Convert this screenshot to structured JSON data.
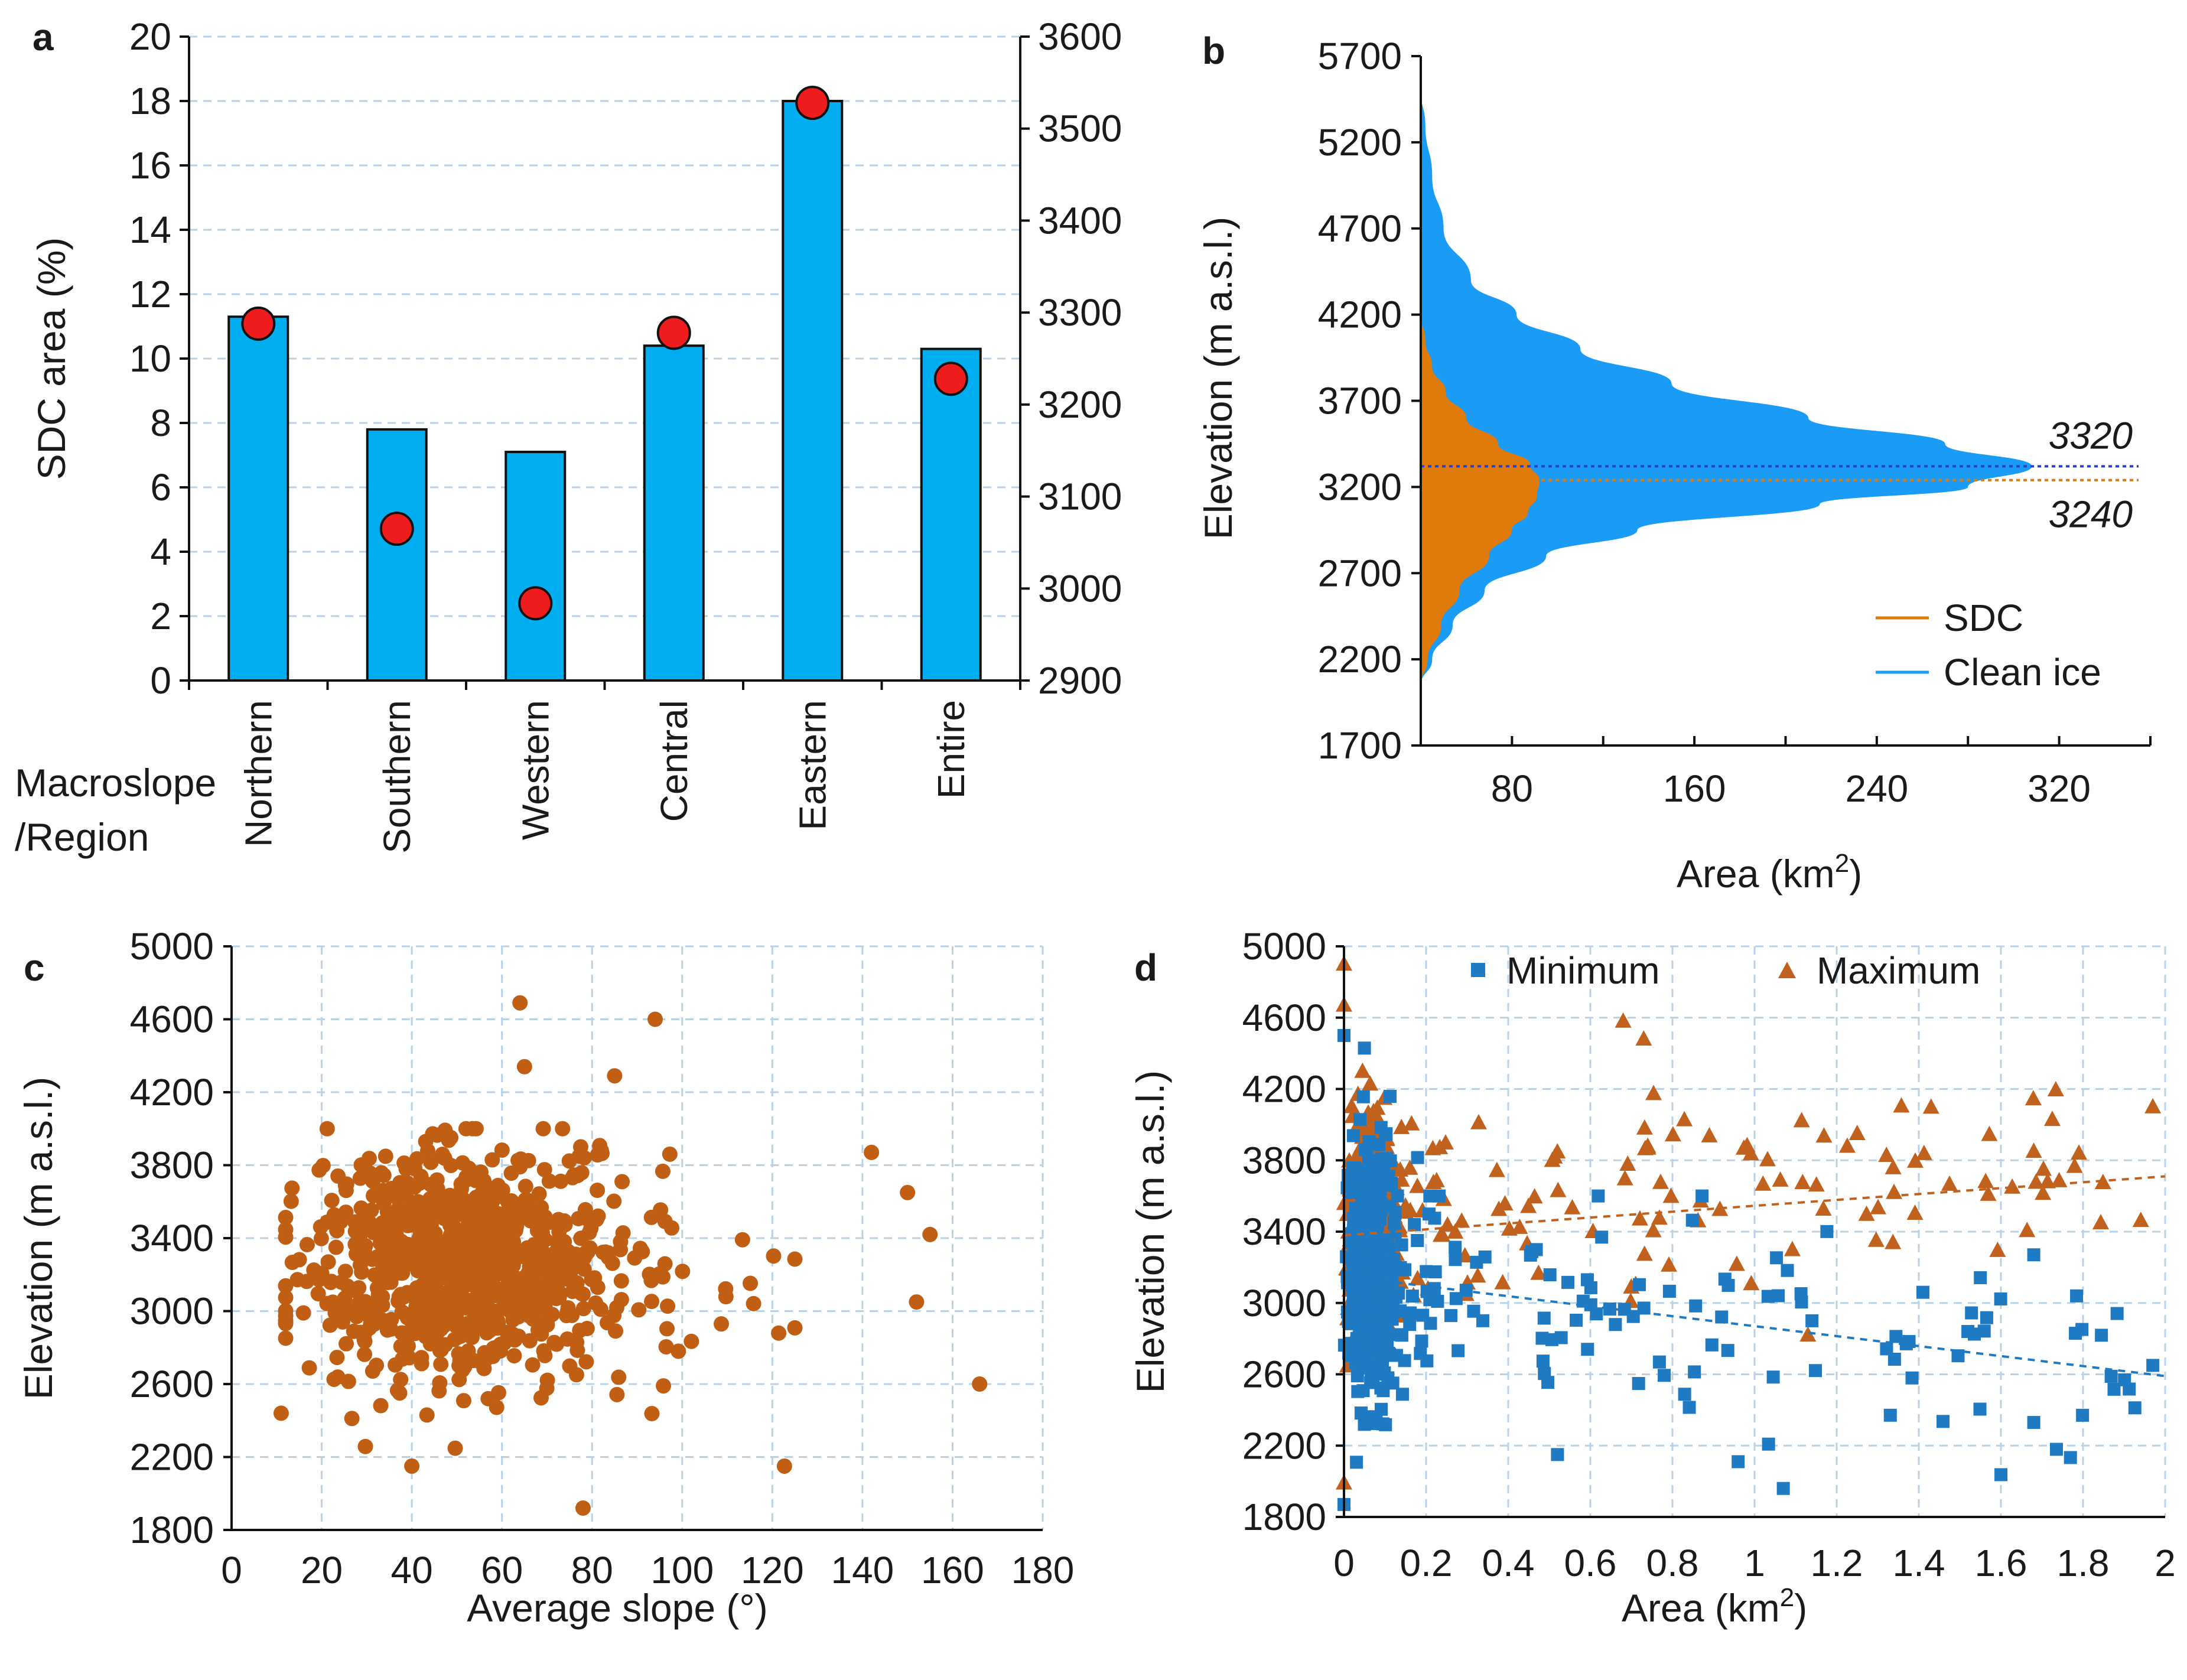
{
  "colors": {
    "bar": "#00aeef",
    "marker_red": "#ee1c1c",
    "sdc_orange": "#e07b0a",
    "clean_blue": "#1a9bf5",
    "scatter_orange": "#c05f14",
    "min_blue": "#1f7ac4",
    "max_orange": "#c0621e",
    "line_3320": "#2a3fd0",
    "label_3240": "#e07b0a"
  },
  "chart_data": [
    {
      "panel": "a",
      "type": "bar",
      "ylabel": "SDC area (%)",
      "xlabel": "Macroslope\n/Region",
      "xlabel_lines": [
        "Macroslope",
        "/Region"
      ],
      "categories": [
        "Northern",
        "Southern",
        "Western",
        "Central",
        "Eastern",
        "Entire"
      ],
      "series": [
        {
          "name": "SDC area (%)",
          "axis": "left",
          "values": [
            11.3,
            7.8,
            7.1,
            10.4,
            18.0,
            10.3
          ]
        },
        {
          "name": "Elevation",
          "axis": "right",
          "values": [
            3288,
            3065,
            2984,
            3278,
            3528,
            3228
          ]
        }
      ],
      "ylim": [
        0,
        20
      ],
      "yticks": [
        0,
        2,
        4,
        6,
        8,
        10,
        12,
        14,
        16,
        18,
        20
      ],
      "y2lim": [
        2900,
        3600
      ],
      "y2ticks": [
        2900,
        3000,
        3100,
        3200,
        3300,
        3400,
        3500,
        3600
      ]
    },
    {
      "panel": "b",
      "type": "area",
      "xlabel": "Area (km",
      "xlabel_sup": "2",
      "xlabel_close": ")",
      "ylabel": "Elevation (m a.s.l.)",
      "xlim": [
        40,
        360
      ],
      "xticks": [
        80,
        160,
        240,
        320
      ],
      "ylim": [
        1700,
        5700
      ],
      "yticks": [
        1700,
        2200,
        2700,
        3200,
        3700,
        4200,
        4700,
        5200,
        5700
      ],
      "series": [
        {
          "name": "SDC",
          "elevations": [
            2050,
            2200,
            2400,
            2600,
            2800,
            2950,
            3050,
            3150,
            3240,
            3330,
            3450,
            3600,
            3750,
            3900,
            4050,
            4200
          ],
          "areas": [
            40,
            43,
            49,
            57,
            70,
            80,
            87,
            91,
            92,
            88,
            74,
            60,
            51,
            45,
            42,
            40
          ]
        },
        {
          "name": "Clean ice",
          "elevations": [
            2050,
            2200,
            2400,
            2600,
            2800,
            2950,
            3100,
            3200,
            3320,
            3450,
            3600,
            3800,
            4000,
            4200,
            4400,
            4700,
            5000,
            5300,
            5500
          ],
          "areas": [
            40,
            45,
            54,
            68,
            95,
            135,
            215,
            280,
            308,
            270,
            210,
            150,
            110,
            82,
            62,
            50,
            45,
            42,
            40
          ]
        }
      ],
      "reference_lines": [
        {
          "value": 3320,
          "label": "3320"
        },
        {
          "value": 3240,
          "label": "3240"
        }
      ],
      "legend": [
        "SDC",
        "Clean ice"
      ],
      "legend_position": "bottom-right"
    },
    {
      "panel": "c",
      "type": "scatter",
      "xlabel": "Average slope (°)",
      "ylabel": "Elevation (m a.s.l.)",
      "xlim": [
        0,
        180
      ],
      "xticks": [
        0,
        20,
        40,
        60,
        80,
        100,
        120,
        140,
        160,
        180
      ],
      "ylim": [
        1800,
        5000
      ],
      "yticks": [
        1800,
        2200,
        2600,
        3000,
        3400,
        3800,
        4200,
        4600,
        5000
      ],
      "notable_points": [
        [
          64,
          4690
        ],
        [
          94,
          4600
        ],
        [
          65,
          4340
        ],
        [
          85,
          4290
        ],
        [
          142,
          3870
        ],
        [
          150,
          3650
        ],
        [
          155,
          3420
        ],
        [
          166,
          2600
        ],
        [
          152,
          3050
        ],
        [
          78,
          1920
        ],
        [
          40,
          2150
        ],
        [
          11,
          2440
        ]
      ],
      "cluster": {
        "x_center": 50,
        "y_center": 3250,
        "count": 900
      }
    },
    {
      "panel": "d",
      "type": "scatter",
      "xlabel": "Area (km",
      "xlabel_sup": "2",
      "xlabel_close": ")",
      "ylabel": "Elevation (m a.s.l.)",
      "xlim": [
        0,
        2
      ],
      "xticks": [
        0,
        0.2,
        0.4,
        0.6,
        0.8,
        1,
        1.2,
        1.4,
        1.6,
        1.8,
        2
      ],
      "xtick_labels": [
        "0",
        "0.2",
        "0.4",
        "0.6",
        "0.8",
        "1",
        "1.2",
        "1.4",
        "1.6",
        "1.8",
        "2"
      ],
      "ylim": [
        1800,
        5000
      ],
      "yticks": [
        1800,
        2200,
        2600,
        3000,
        3400,
        3800,
        4200,
        4600,
        5000
      ],
      "legend": [
        "Minimum",
        "Maximum"
      ],
      "legend_position": "top",
      "series": [
        {
          "name": "Minimum",
          "marker": "square",
          "trend": [
            [
              0,
              3150
            ],
            [
              2,
              2590
            ]
          ],
          "notable_points": [
            [
              0.0,
              4500
            ],
            [
              0.0,
              1870
            ],
            [
              1.07,
              1960
            ],
            [
              0.96,
              2110
            ],
            [
              1.41,
              3060
            ],
            [
              1.68,
              3270
            ],
            [
              1.68,
              2330
            ],
            [
              1.97,
              2650
            ],
            [
              0.52,
              2150
            ]
          ]
        },
        {
          "name": "Maximum",
          "marker": "triangle",
          "trend": [
            [
              0,
              3380
            ],
            [
              2,
              3710
            ]
          ],
          "notable_points": [
            [
              0.0,
              4900
            ],
            [
              0.0,
              4670
            ],
            [
              0.68,
              4580
            ],
            [
              0.73,
              4480
            ],
            [
              1.97,
              4100
            ],
            [
              1.25,
              3950
            ],
            [
              1.68,
              3850
            ],
            [
              1.79,
              3840
            ],
            [
              0.0,
              1990
            ],
            [
              1.13,
              2820
            ]
          ]
        }
      ]
    }
  ]
}
